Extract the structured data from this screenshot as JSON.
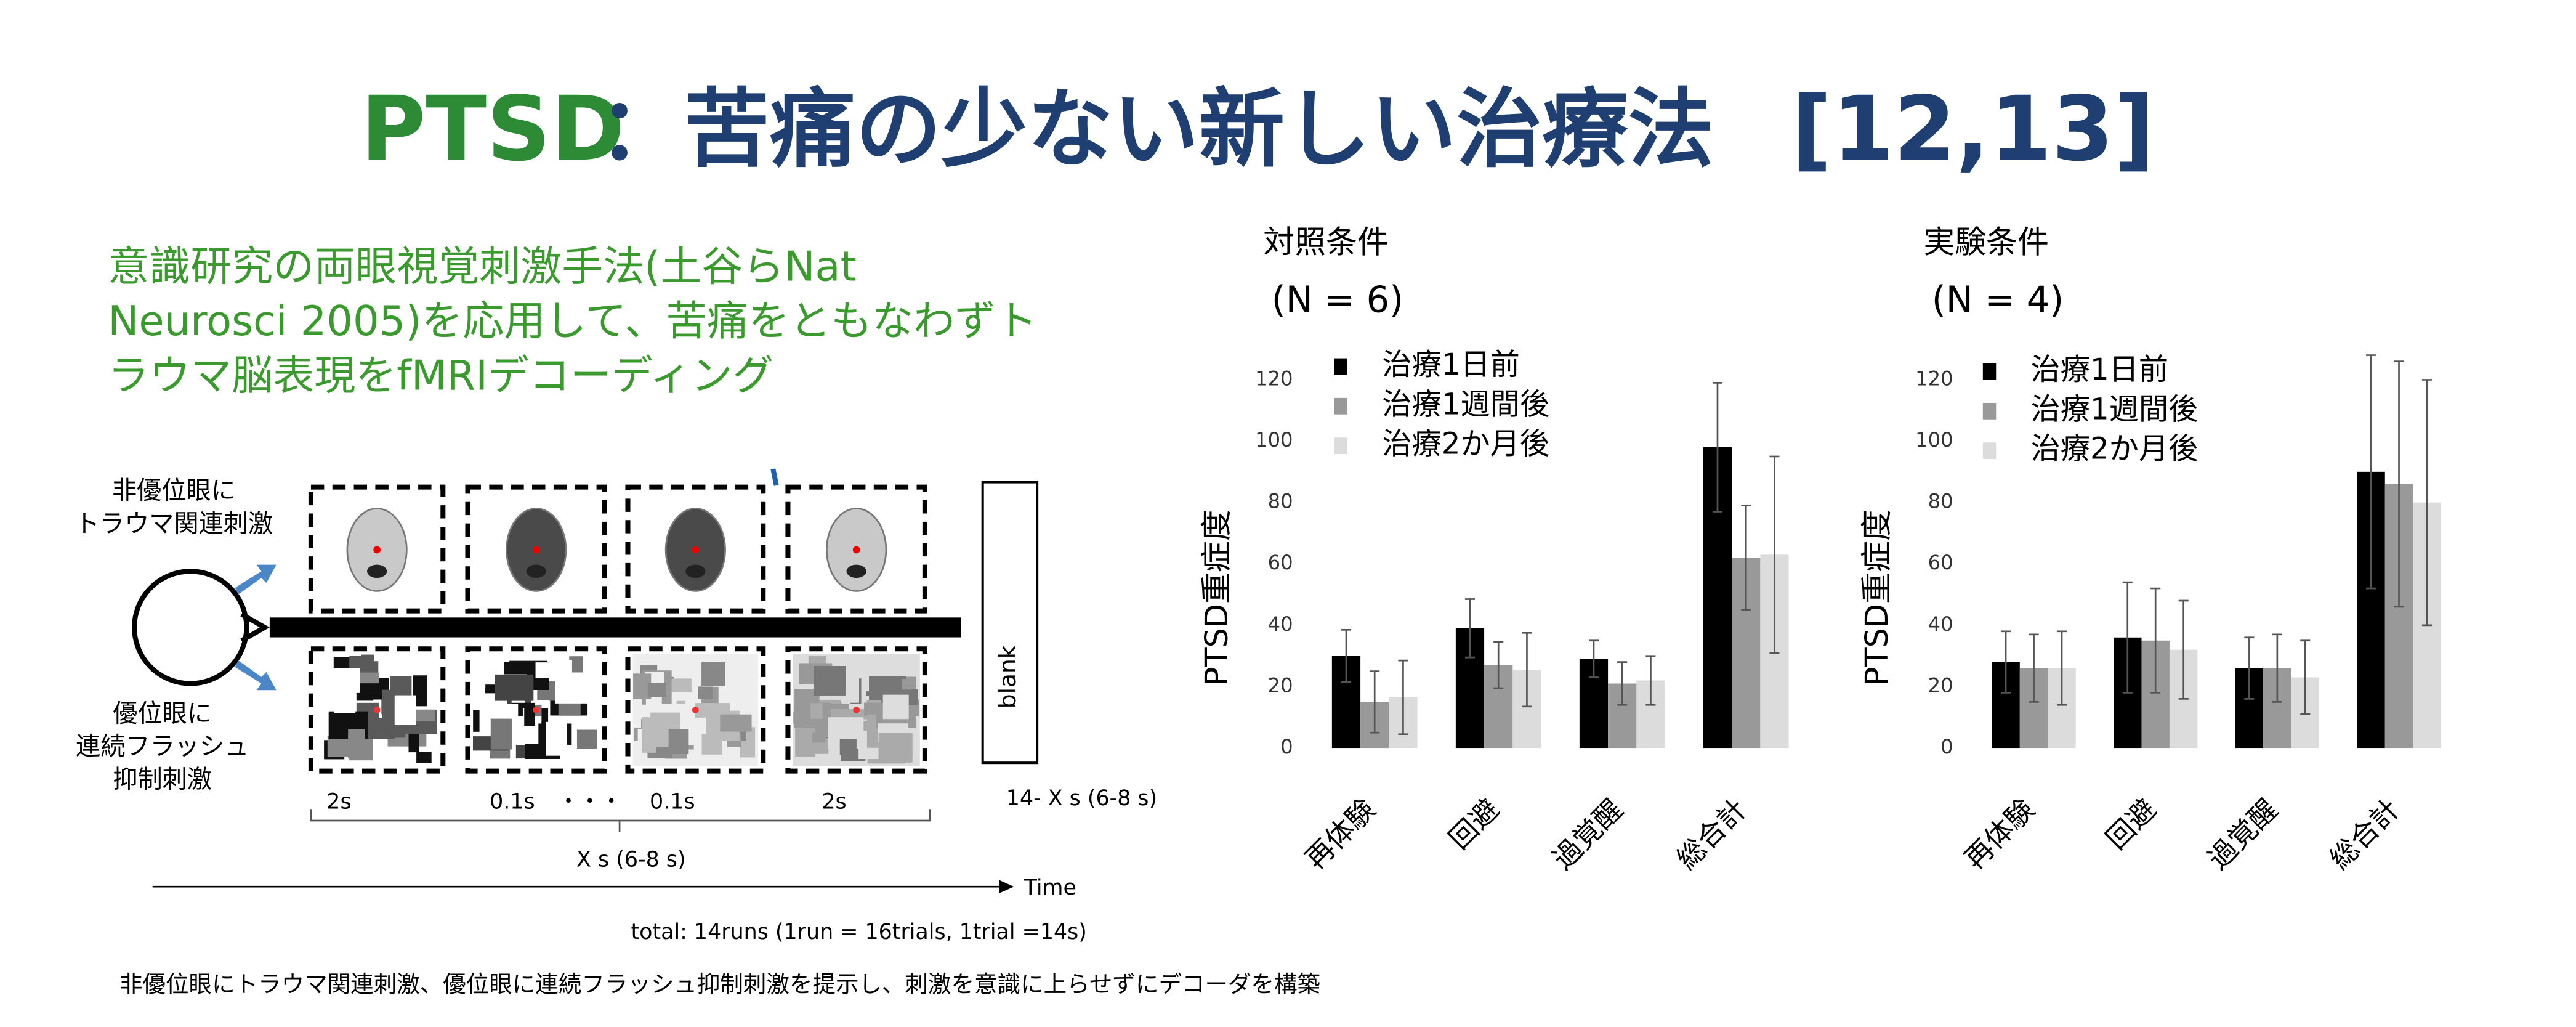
{
  "title": {
    "acronym": "PTSD",
    "main": "：苦痛の少ない新しい治療法",
    "ref": "[12,13]"
  },
  "summary": [
    "意識研究の両眼視覚刺激手法(土谷らNat",
    "Neurosci 2005)を応用して、苦痛をともなわずト",
    "ラウマ脳表現をfMRIデコーディング"
  ],
  "diagram": {
    "top_label": [
      "非優位眼に",
      "トラウマ関連刺激"
    ],
    "bottom_label": [
      "優位眼に",
      "連続フラッシュ",
      "抑制刺激"
    ],
    "blank": "blank",
    "durations": [
      "2s",
      "0.1s",
      "・・・",
      "0.1s",
      "2s"
    ],
    "blank_duration": "14- X s (6-8 s)",
    "stimulus_duration": "X s (6-8 s)",
    "time_axis": "Time",
    "total": "total: 14runs (1run = 16trials, 1trial =14s)"
  },
  "caption": "非優位眼にトラウマ関連刺激、優位眼に連続フラッシュ抑制刺激を提示し、刺激を意識に上らせずにデコーダを構築",
  "chart_data": [
    {
      "type": "bar",
      "title": "対照条件",
      "subtitle": "(N = 6)",
      "y_label": "PTSD重症度",
      "categories": [
        "再体験",
        "回避",
        "過覚醒",
        "総合計"
      ],
      "series": [
        {
          "name": "治療1日前",
          "color": "#000000",
          "values": [
            30,
            39,
            29,
            98
          ],
          "errors": [
            8.5,
            9.5,
            6,
            21
          ]
        },
        {
          "name": "治療1週間後",
          "color": "#999999",
          "values": [
            15,
            27,
            21,
            62
          ],
          "errors": [
            10,
            7.5,
            7,
            17
          ]
        },
        {
          "name": "治療2か月後",
          "color": "#dcdcdc",
          "values": [
            16.5,
            25.5,
            22,
            63
          ],
          "errors": [
            12,
            12,
            8,
            32
          ]
        }
      ],
      "ylim": [
        0,
        120
      ],
      "yticks": [
        0,
        20,
        40,
        60,
        80,
        100,
        120
      ]
    },
    {
      "type": "bar",
      "title": "実験条件",
      "subtitle": "(N = 4)",
      "y_label": "PTSD重症度",
      "categories": [
        "再体験",
        "回避",
        "過覚醒",
        "総合計"
      ],
      "series": [
        {
          "name": "治療1日前",
          "color": "#000000",
          "values": [
            28,
            36,
            26,
            90
          ],
          "errors": [
            10,
            18,
            10,
            38
          ]
        },
        {
          "name": "治療1週間後",
          "color": "#999999",
          "values": [
            26,
            35,
            26,
            86
          ],
          "errors": [
            11,
            17,
            11,
            40
          ]
        },
        {
          "name": "治療2か月後",
          "color": "#dcdcdc",
          "values": [
            26,
            32,
            23,
            80
          ],
          "errors": [
            12,
            16,
            12,
            40
          ]
        }
      ],
      "ylim": [
        0,
        120
      ],
      "yticks": [
        0,
        20,
        40,
        60,
        80,
        100,
        120
      ]
    }
  ]
}
